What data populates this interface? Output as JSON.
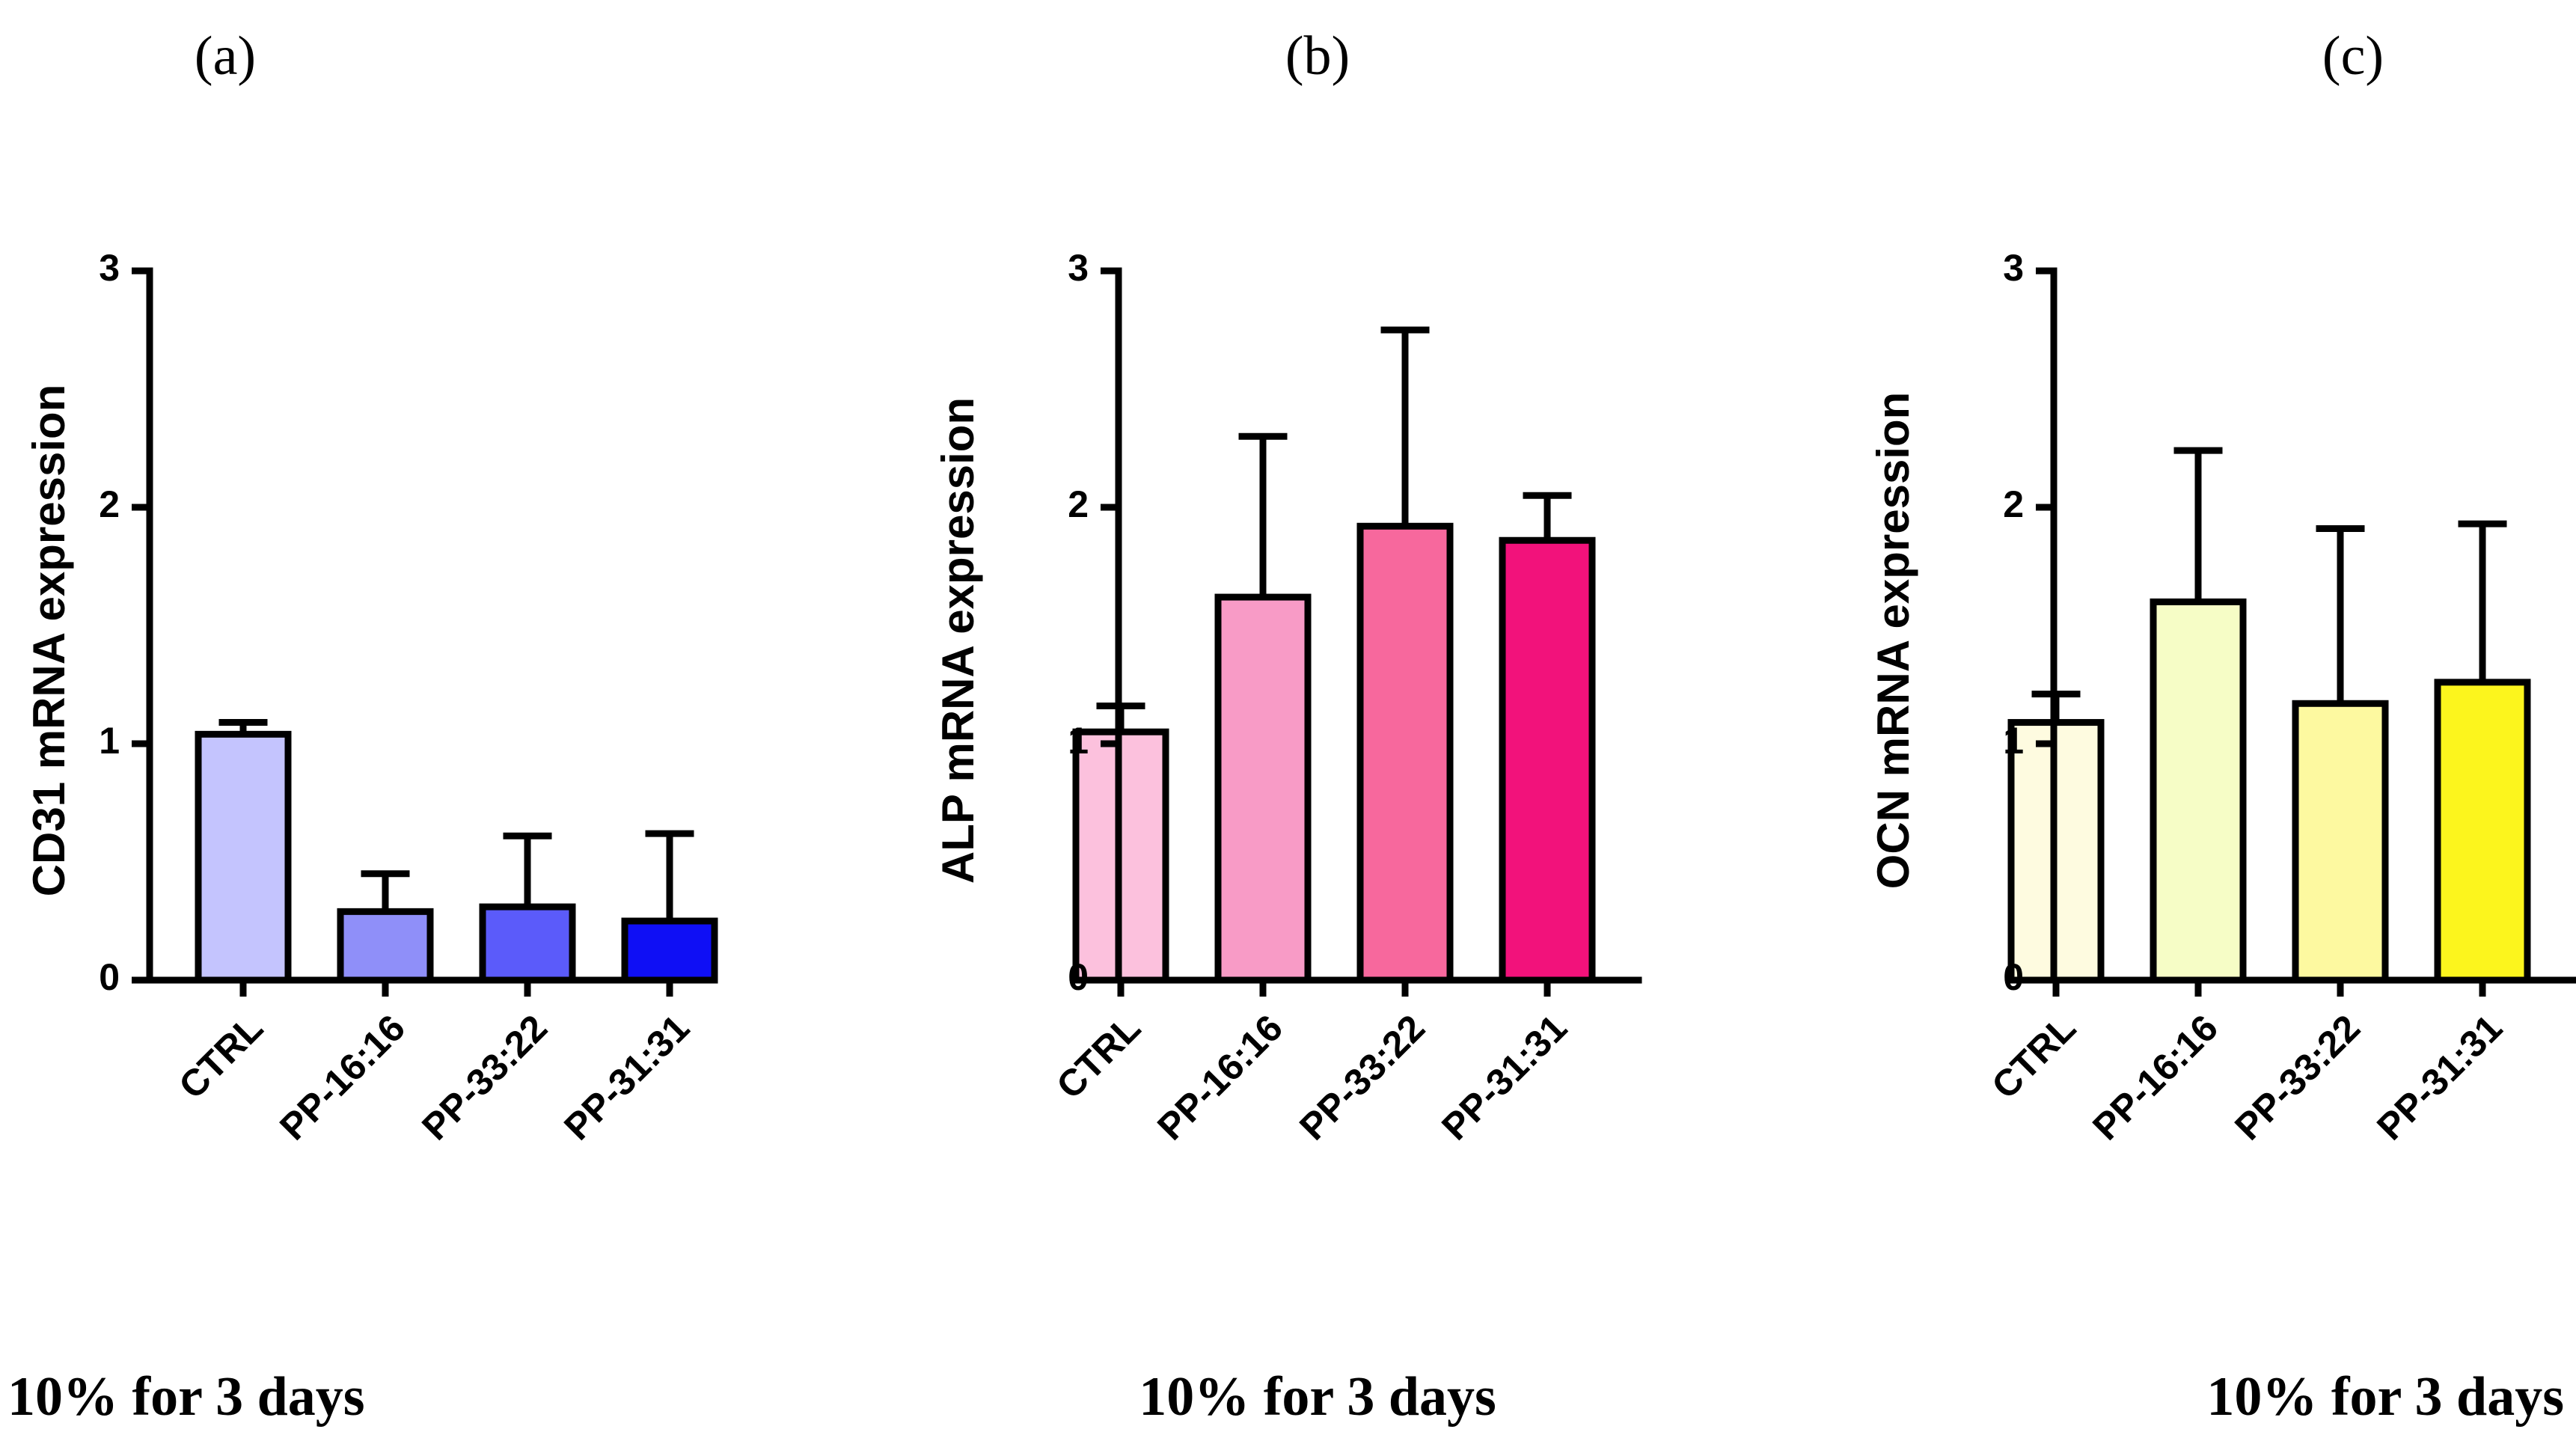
{
  "panels": [
    {
      "letter": "(a)",
      "caption": "10% for 3 days"
    },
    {
      "letter": "(b)",
      "caption": "10% for 3 days"
    },
    {
      "letter": "(c)",
      "caption": "10% for 3 days"
    }
  ],
  "chart_data": [
    {
      "type": "bar",
      "title": "",
      "xlabel": "",
      "ylabel": "CD31 mRNA expression",
      "ylim": [
        0,
        3
      ],
      "yticks": [
        0,
        1,
        2,
        3
      ],
      "categories": [
        "CTRL",
        "PP-16:16",
        "PP-33:22",
        "PP-31:31"
      ],
      "values": [
        1.04,
        0.29,
        0.31,
        0.25
      ],
      "error_upper": [
        1.09,
        0.45,
        0.61,
        0.62
      ],
      "colors": [
        "#c4c4fe",
        "#8f8ff9",
        "#5b5bfa",
        "#0f0ff5"
      ]
    },
    {
      "type": "bar",
      "title": "",
      "xlabel": "",
      "ylabel": "ALP mRNA expression",
      "ylim": [
        0,
        3
      ],
      "yticks": [
        0,
        1,
        2,
        3
      ],
      "categories": [
        "CTRL",
        "PP-16:16",
        "PP-33:22",
        "PP-31:31"
      ],
      "values": [
        1.05,
        1.62,
        1.92,
        1.86
      ],
      "error_upper": [
        1.16,
        2.3,
        2.75,
        2.05
      ],
      "colors": [
        "#fcc1dd",
        "#f89bc6",
        "#f7689d",
        "#f2127b"
      ]
    },
    {
      "type": "bar",
      "title": "",
      "xlabel": "",
      "ylabel": "OCN mRNA expression",
      "ylim": [
        0,
        3
      ],
      "yticks": [
        0,
        1,
        2,
        3
      ],
      "categories": [
        "CTRL",
        "PP-16:16",
        "PP-33:22",
        "PP-31:31"
      ],
      "values": [
        1.09,
        1.6,
        1.17,
        1.26
      ],
      "error_upper": [
        1.21,
        2.24,
        1.91,
        1.93
      ],
      "colors": [
        "#fefbe0",
        "#f6fdc6",
        "#fdf9a0",
        "#fcf51d"
      ]
    }
  ]
}
